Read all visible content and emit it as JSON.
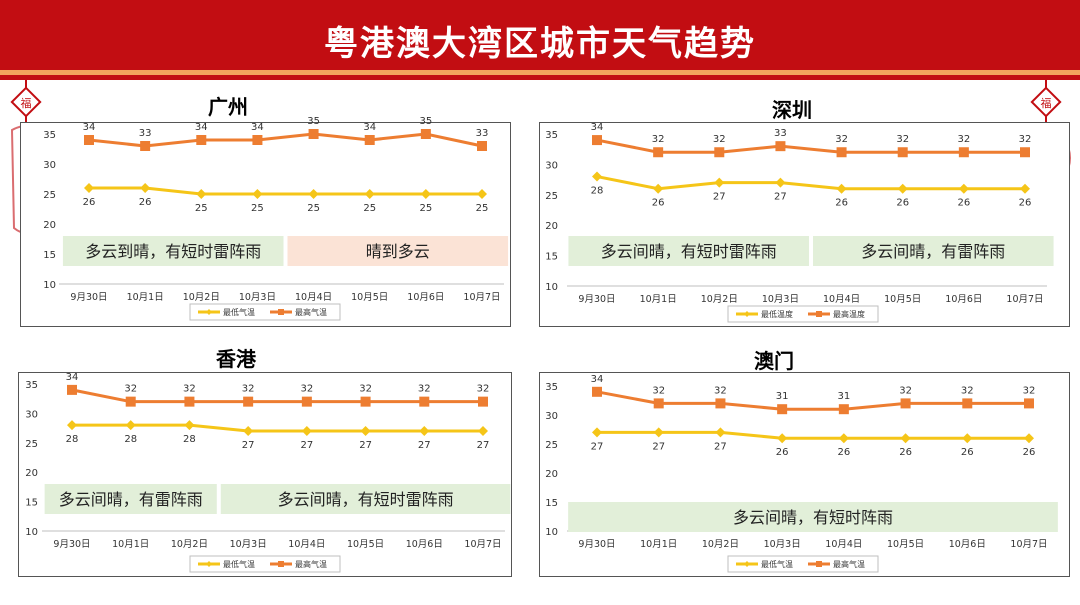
{
  "page": {
    "title": "粤港澳大湾区城市天气趋势"
  },
  "colors": {
    "header": "#c20d12",
    "stripe": "#f3a35c",
    "high": "#ed7d31",
    "low": "#f5c518",
    "banner_green": "#e2efd9",
    "banner_peach": "#fbe3d6"
  },
  "chart_data": [
    {
      "type": "line",
      "title": "广州",
      "categories": [
        "9月30日",
        "10月1日",
        "10月2日",
        "10月3日",
        "10月4日",
        "10月5日",
        "10月6日",
        "10月7日"
      ],
      "series": [
        {
          "name": "最低气温",
          "values": [
            26,
            26,
            25,
            25,
            25,
            25,
            25,
            25
          ]
        },
        {
          "name": "最高气温",
          "values": [
            34,
            33,
            34,
            34,
            35,
            34,
            35,
            33
          ]
        }
      ],
      "yticks": [
        "35",
        "30",
        "25",
        "20",
        "15",
        "10"
      ],
      "ylim": [
        10,
        35
      ],
      "legend_position": "bottom",
      "banners": [
        {
          "text": "多云到晴，有短时雷阵雨",
          "from": 0,
          "to": 3,
          "style": "green"
        },
        {
          "text": "晴到多云",
          "from": 4,
          "to": 7,
          "style": "peach"
        }
      ]
    },
    {
      "type": "line",
      "title": "深圳",
      "categories": [
        "9月30日",
        "10月1日",
        "10月2日",
        "10月3日",
        "10月4日",
        "10月5日",
        "10月6日",
        "10月7日"
      ],
      "series": [
        {
          "name": "最低温度",
          "values": [
            28,
            26,
            27,
            27,
            26,
            26,
            26,
            26
          ]
        },
        {
          "name": "最高温度",
          "values": [
            34,
            32,
            32,
            33,
            32,
            32,
            32,
            32
          ]
        }
      ],
      "yticks": [
        "35",
        "30",
        "25",
        "20",
        "15",
        "10"
      ],
      "ylim": [
        10,
        35
      ],
      "legend_position": "bottom",
      "banners": [
        {
          "text": "多云间晴，有短时雷阵雨",
          "from": 0,
          "to": 3,
          "style": "green"
        },
        {
          "text": "多云间晴，有雷阵雨",
          "from": 4,
          "to": 7,
          "style": "green"
        }
      ]
    },
    {
      "type": "line",
      "title": "香港",
      "categories": [
        "9月30日",
        "10月1日",
        "10月2日",
        "10月3日",
        "10月4日",
        "10月5日",
        "10月6日",
        "10月7日"
      ],
      "series": [
        {
          "name": "最低气温",
          "values": [
            28,
            28,
            28,
            27,
            27,
            27,
            27,
            27
          ]
        },
        {
          "name": "最高气温",
          "values": [
            34,
            32,
            32,
            32,
            32,
            32,
            32,
            32
          ]
        }
      ],
      "yticks": [
        "35",
        "30",
        "25",
        "20",
        "15",
        "10"
      ],
      "ylim": [
        10,
        35
      ],
      "legend_position": "bottom",
      "banners": [
        {
          "text": "多云间晴，有雷阵雨",
          "from": 0,
          "to": 2,
          "style": "green"
        },
        {
          "text": "多云间晴，有短时雷阵雨",
          "from": 3,
          "to": 7,
          "style": "green"
        }
      ]
    },
    {
      "type": "line",
      "title": "澳门",
      "categories": [
        "9月30日",
        "10月1日",
        "10月2日",
        "10月3日",
        "10月4日",
        "10月5日",
        "10月6日",
        "10月7日"
      ],
      "series": [
        {
          "name": "最低气温",
          "values": [
            27,
            27,
            27,
            26,
            26,
            26,
            26,
            26
          ]
        },
        {
          "name": "最高气温",
          "values": [
            34,
            32,
            32,
            31,
            31,
            32,
            32,
            32
          ]
        }
      ],
      "yticks": [
        "35",
        "30",
        "25",
        "20",
        "15",
        "10"
      ],
      "ylim": [
        10,
        35
      ],
      "legend_position": "bottom",
      "banners": [
        {
          "text": "多云间晴，有短时阵雨",
          "from": 0,
          "to": 7,
          "style": "green",
          "low": true
        }
      ]
    }
  ]
}
